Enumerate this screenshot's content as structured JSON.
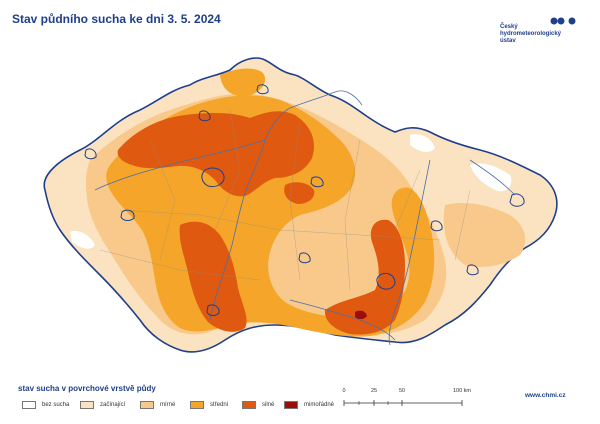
{
  "title": "Stav půdního sucha ke dni 3. 5. 2024",
  "institution": {
    "lines": [
      "Český",
      "hydrometeorologický",
      "ústav"
    ],
    "logo_icon": "chmi-logo-icon",
    "color": "#1f3f8a"
  },
  "legend": {
    "title": "stav sucha v povrchové vrstvě půdy",
    "items": [
      {
        "label": "bez sucha",
        "color": "#ffffff"
      },
      {
        "label": "začínající",
        "color": "#fbe3c1"
      },
      {
        "label": "mírné",
        "color": "#f8c98a"
      },
      {
        "label": "střední",
        "color": "#f4a52a"
      },
      {
        "label": "silné",
        "color": "#df5a10"
      },
      {
        "label": "mimořádné",
        "color": "#9b0d07"
      }
    ]
  },
  "scale": {
    "ticks": [
      "0",
      "25",
      "50",
      "100 km"
    ]
  },
  "url": "www.chmi.cz",
  "colors": {
    "border": "#1f3f8a",
    "rivers": "#4b6fa8"
  }
}
